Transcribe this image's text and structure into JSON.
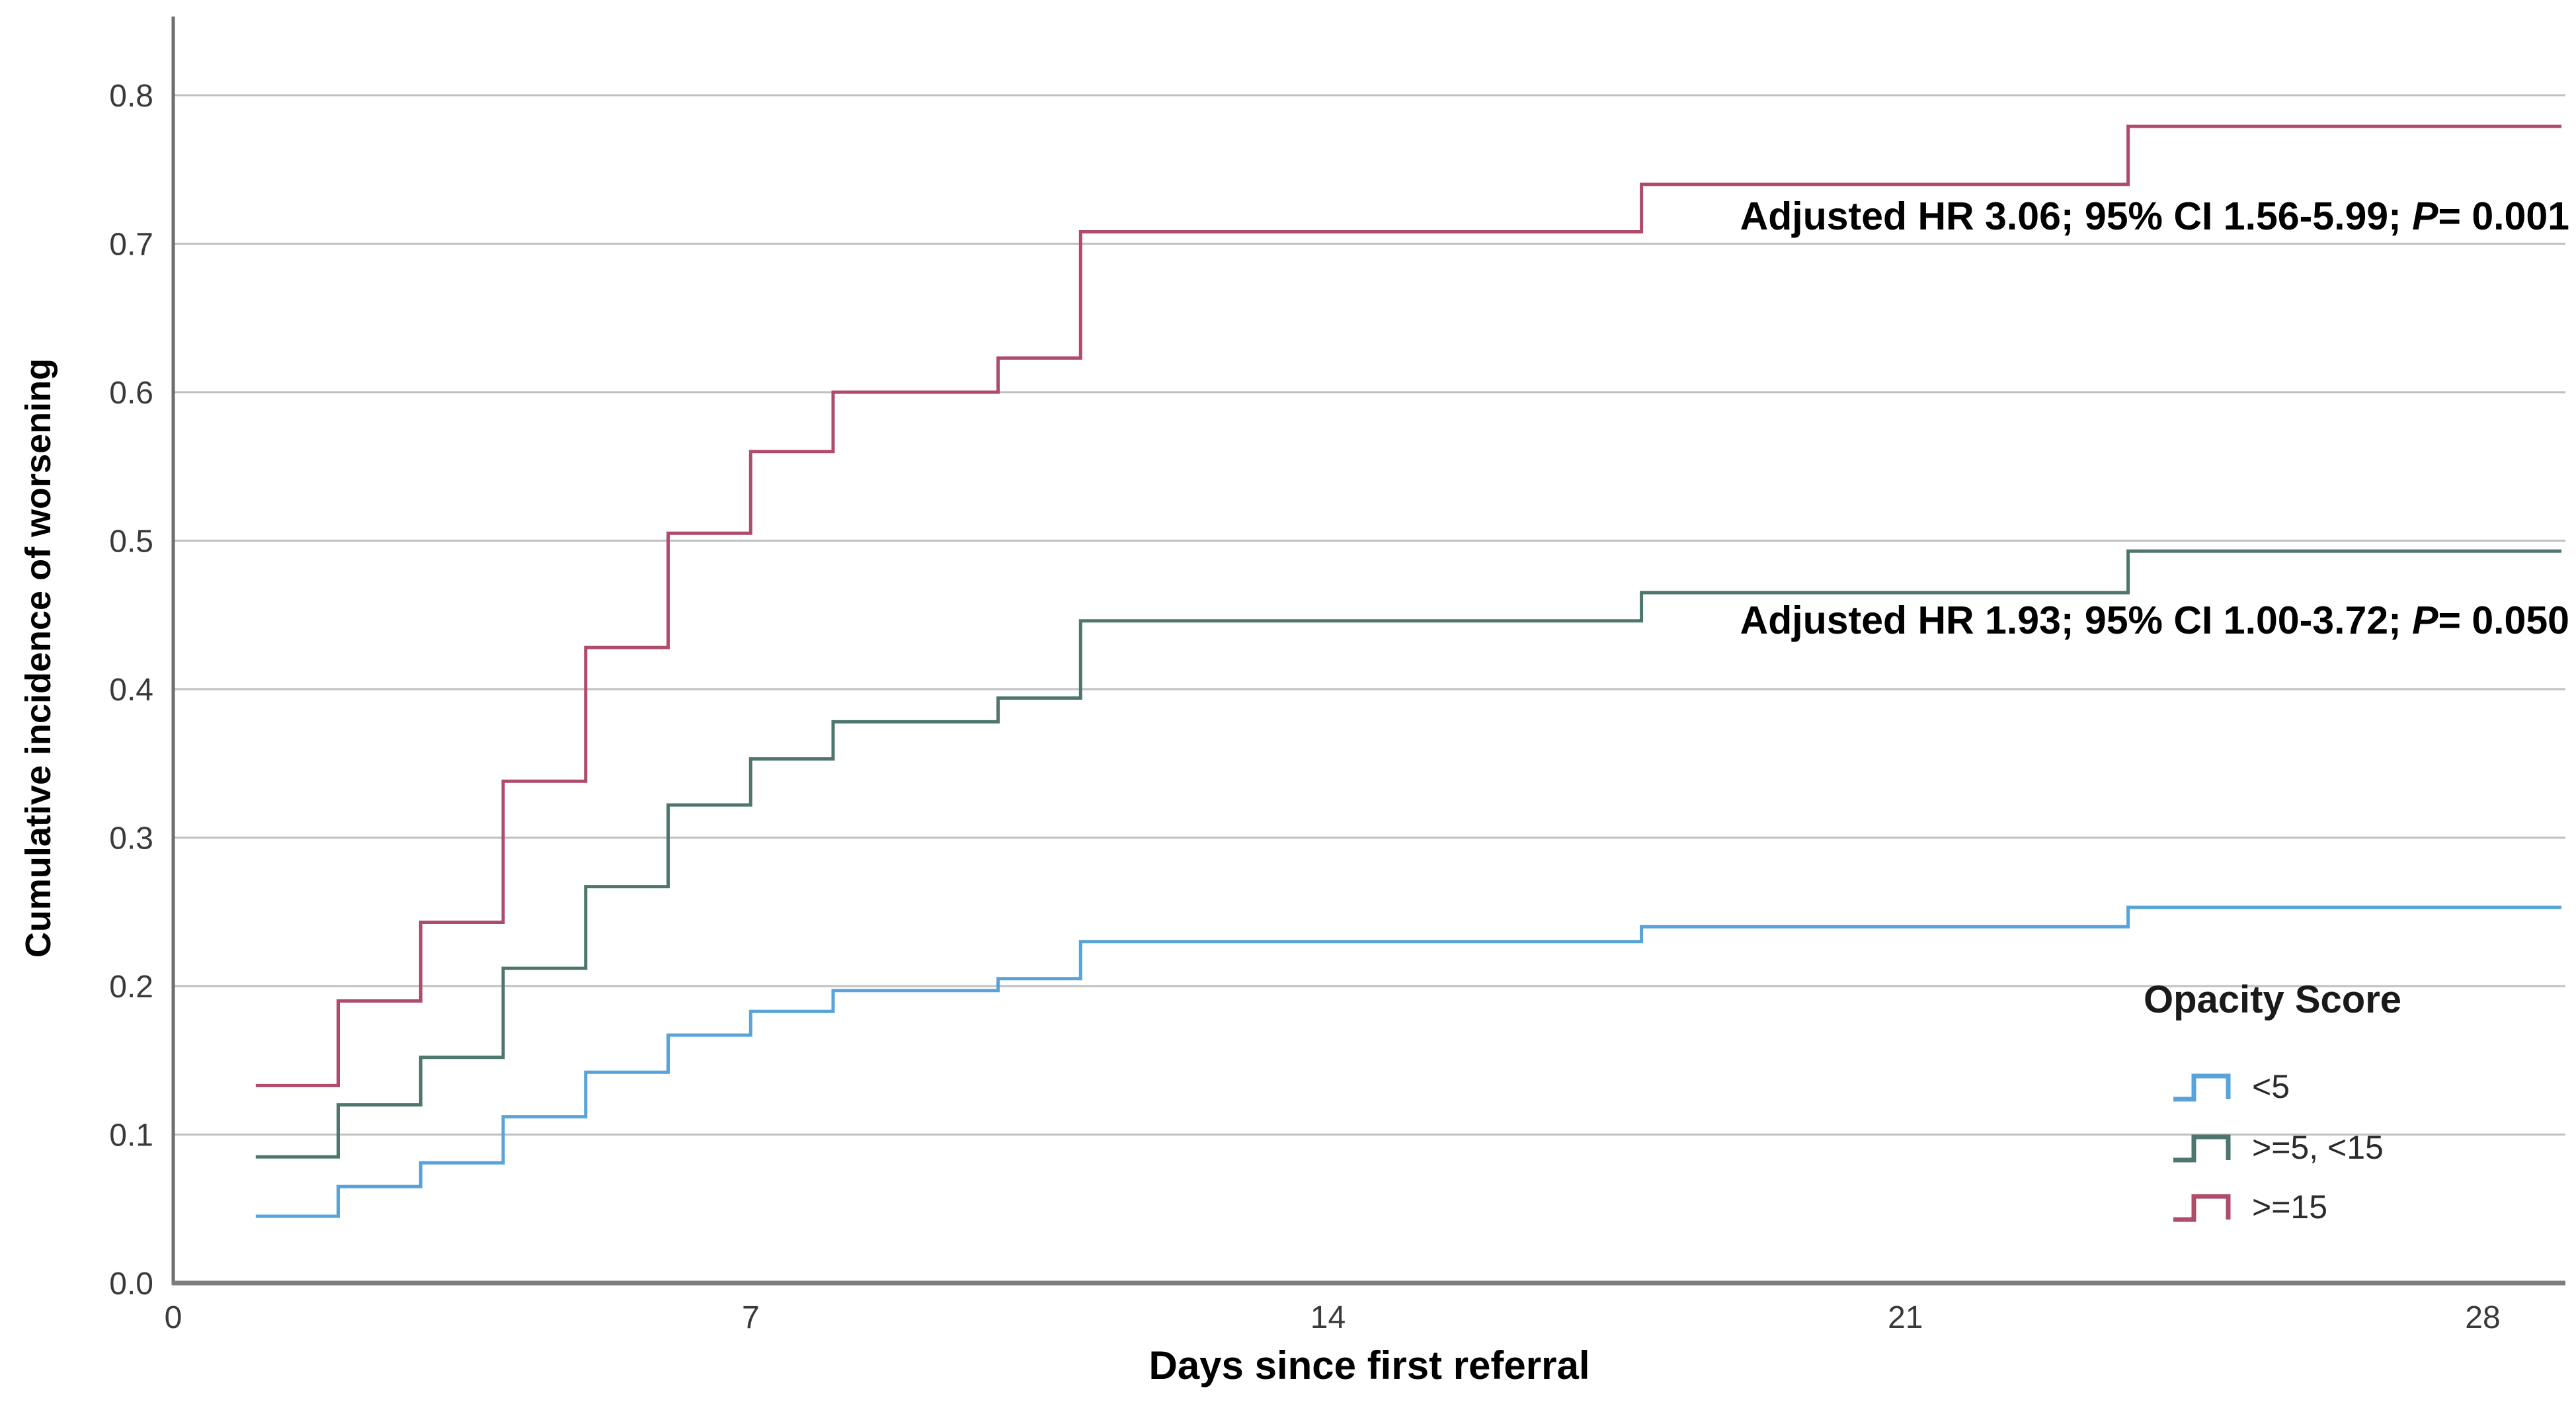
{
  "chart_data": {
    "type": "line",
    "subtype": "step (cumulative incidence / Kaplan-Meier style)",
    "title": "",
    "xlabel": "Days since first referral",
    "ylabel": "Cumulative incidence of worsening",
    "xlim": [
      0,
      29
    ],
    "ylim": [
      0,
      0.855
    ],
    "grid": true,
    "xticks": [
      0,
      7,
      14,
      21,
      28
    ],
    "xtick_labels": [
      "0",
      "7",
      "14",
      "21",
      "28"
    ],
    "yticks": [
      0,
      0.1,
      0.2,
      0.3,
      0.4,
      0.5,
      0.6,
      0.7,
      0.8
    ],
    "ytick_labels": [
      "0.0",
      "0.1",
      "0.2",
      "0.3",
      "0.4",
      "0.5",
      "0.6",
      "0.7",
      "0.8"
    ],
    "colors": {
      "axis": "#6e6e6e",
      "grid": "#c0c0c0",
      "tick_text": "#3a3a3a"
    },
    "legend": {
      "title": "Opacity Score",
      "position": "inside-lower-right"
    },
    "series": [
      {
        "name": "<5",
        "color": "#58a3d9",
        "points": [
          [
            1,
            0.045
          ],
          [
            2,
            0.065
          ],
          [
            3,
            0.081
          ],
          [
            4,
            0.112
          ],
          [
            5,
            0.142
          ],
          [
            6,
            0.167
          ],
          [
            7,
            0.183
          ],
          [
            8,
            0.197
          ],
          [
            10,
            0.205
          ],
          [
            11,
            0.23
          ],
          [
            17.8,
            0.24
          ],
          [
            23.7,
            0.253
          ]
        ]
      },
      {
        "name": ">=5, <15",
        "color": "#4e766e",
        "points": [
          [
            1,
            0.085
          ],
          [
            2,
            0.12
          ],
          [
            3,
            0.152
          ],
          [
            4,
            0.212
          ],
          [
            5,
            0.267
          ],
          [
            6,
            0.322
          ],
          [
            7,
            0.353
          ],
          [
            8,
            0.378
          ],
          [
            10,
            0.394
          ],
          [
            11,
            0.446
          ],
          [
            17.8,
            0.465
          ],
          [
            23.7,
            0.493
          ]
        ]
      },
      {
        "name": ">=15",
        "color": "#ae4c6a",
        "points": [
          [
            1,
            0.133
          ],
          [
            2,
            0.19
          ],
          [
            3,
            0.243
          ],
          [
            4,
            0.338
          ],
          [
            5,
            0.428
          ],
          [
            6,
            0.505
          ],
          [
            7,
            0.56
          ],
          [
            8,
            0.6
          ],
          [
            10,
            0.623
          ],
          [
            11,
            0.708
          ],
          [
            17.8,
            0.74
          ],
          [
            23.7,
            0.779
          ]
        ]
      }
    ],
    "annotations": [
      {
        "prefix": "Adjusted HR 3.06; 95% CI 1.56-5.99; ",
        "p_label": "P",
        "suffix": "= 0.001"
      },
      {
        "prefix": "Adjusted HR 1.93; 95% CI 1.00-3.72; ",
        "p_label": "P",
        "suffix": "= 0.050"
      }
    ]
  }
}
